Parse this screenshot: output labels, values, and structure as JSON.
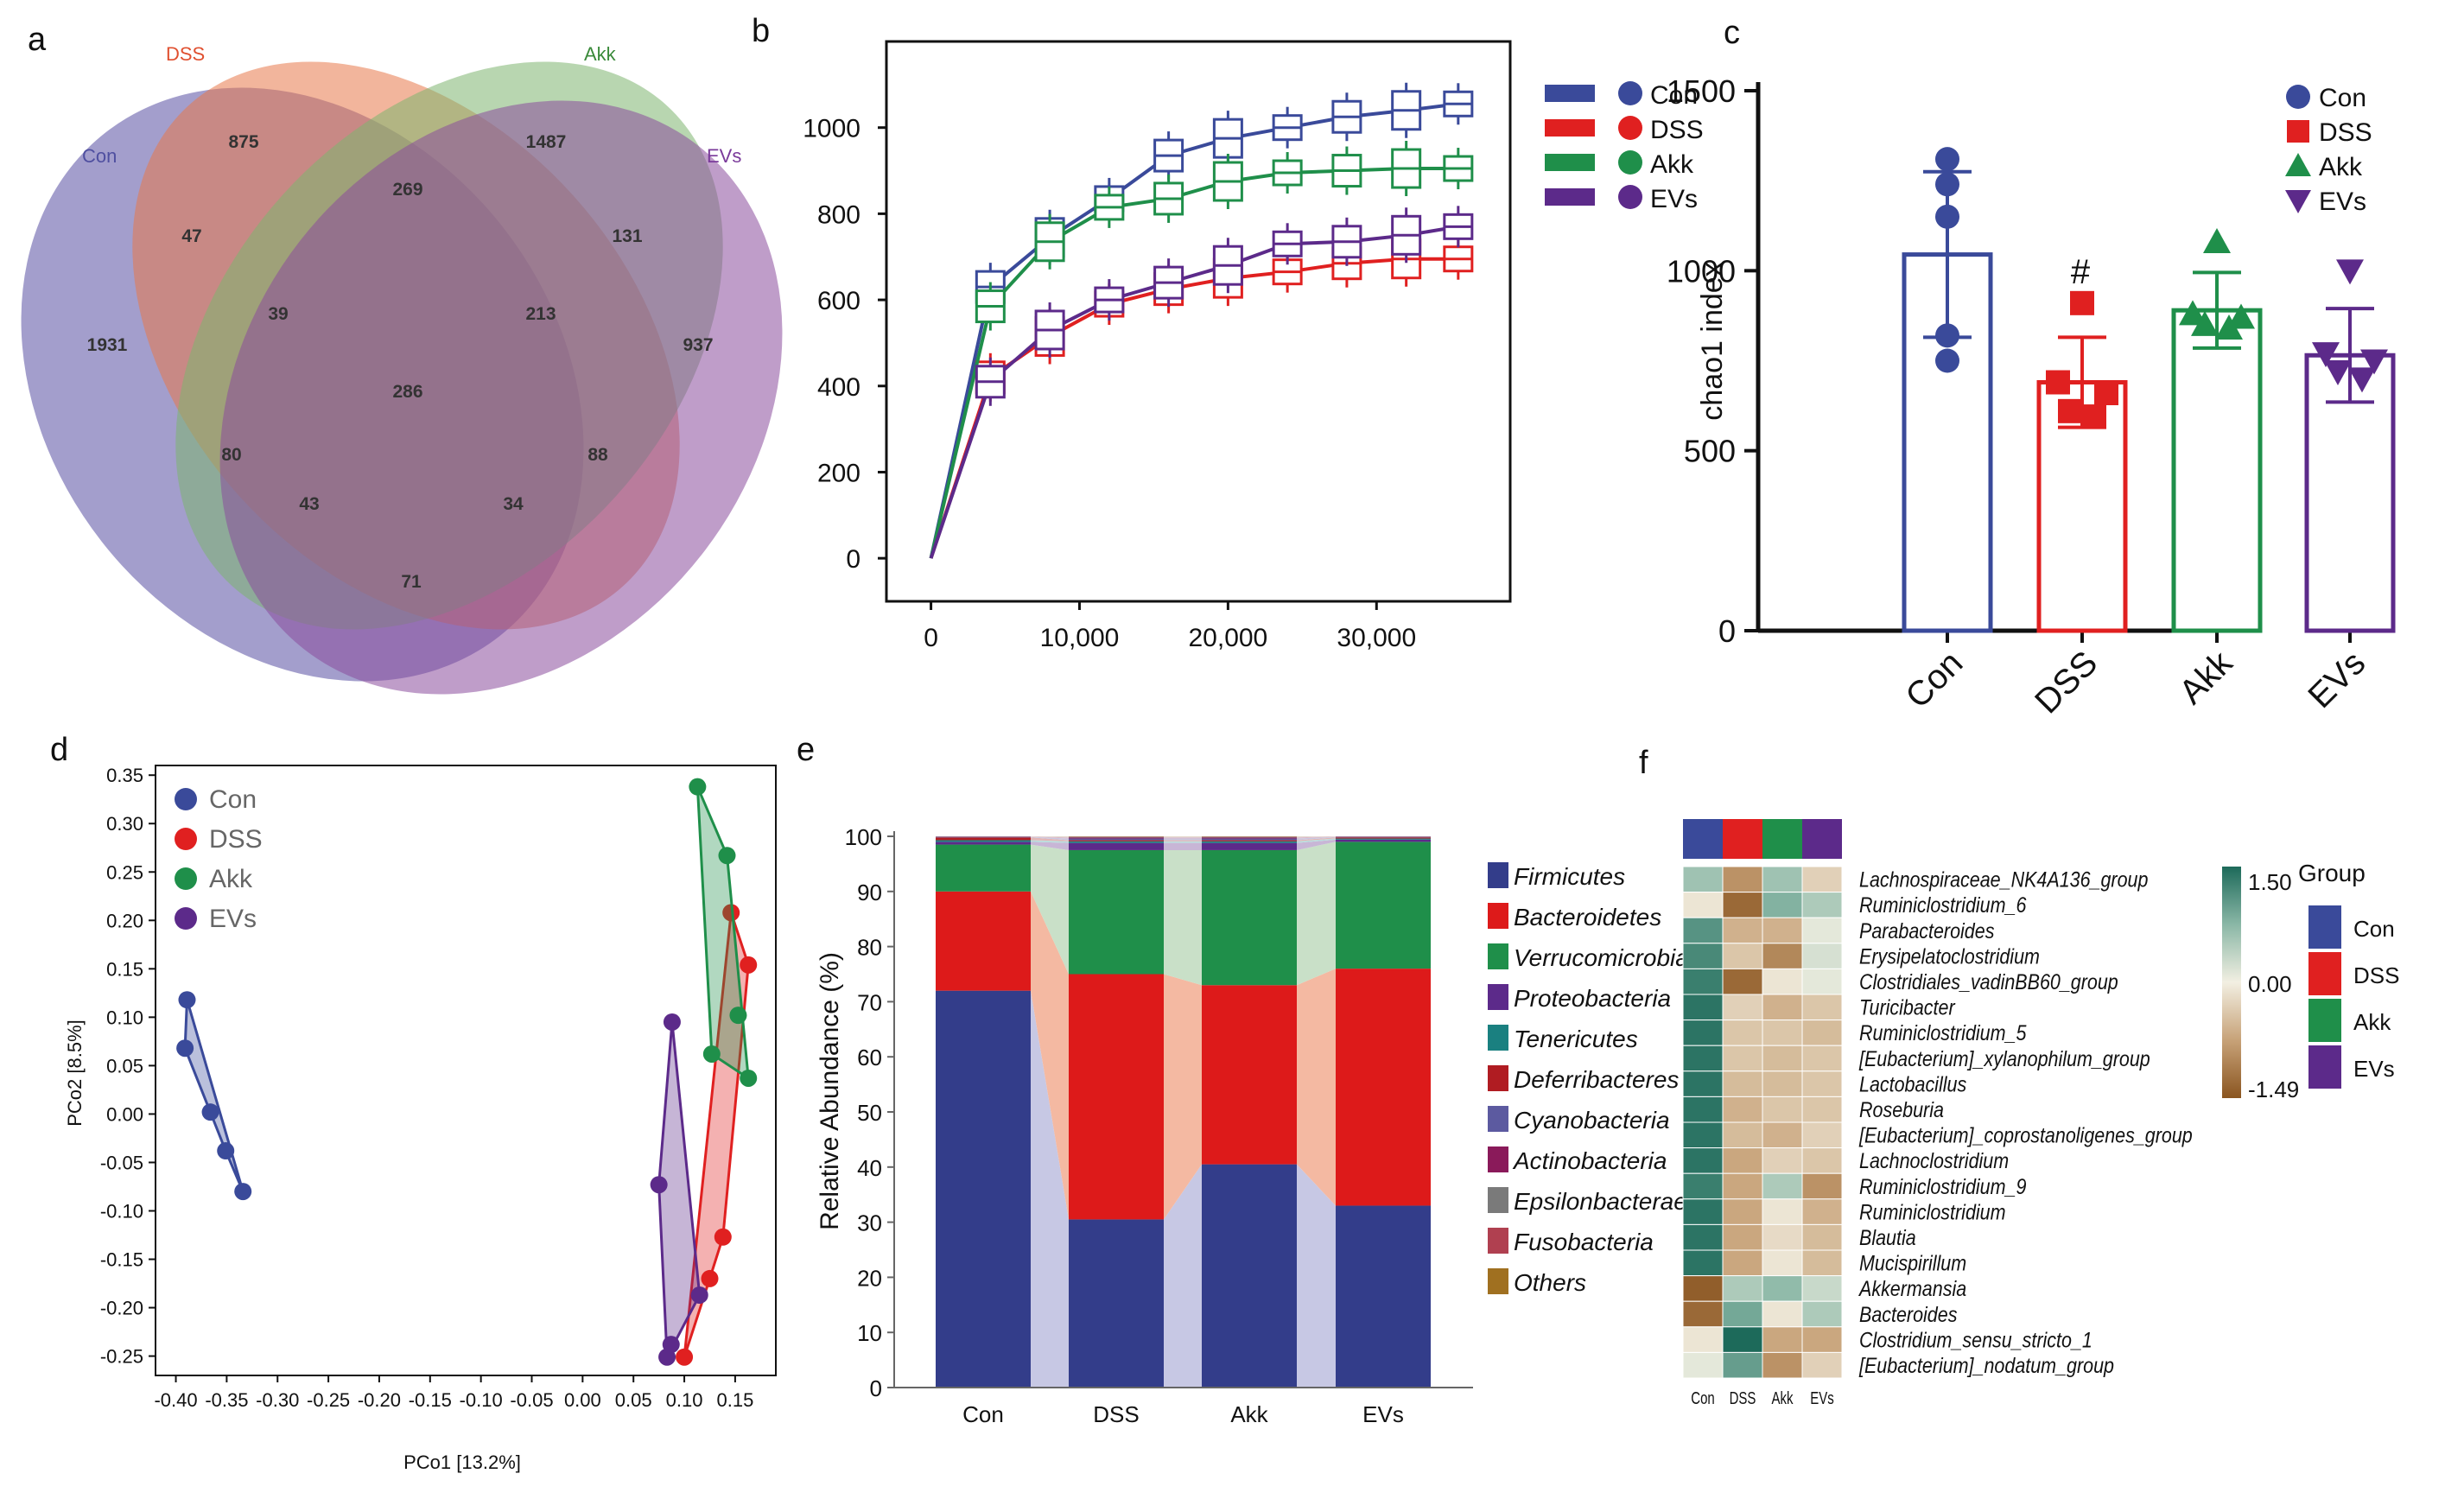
{
  "panels": [
    "a",
    "b",
    "c",
    "d",
    "e",
    "f"
  ],
  "colors": {
    "Con": "#3a4a9a",
    "DSS": "#e02020",
    "Akk": "#1f8f4a",
    "EVs": "#5c2a8a",
    "venn_Con": "#7b76b6",
    "venn_DSS": "#e8805a",
    "venn_Akk": "#86b77a",
    "venn_EVs": "#8e5a9e"
  },
  "chart_data": [
    {
      "panel": "a",
      "type": "venn",
      "sets": [
        {
          "name": "Con",
          "color": "#4f4fa0"
        },
        {
          "name": "DSS",
          "color": "#e05030"
        },
        {
          "name": "Akk",
          "color": "#3a8a3a"
        },
        {
          "name": "EVs",
          "color": "#7a3a9a"
        }
      ],
      "regions": [
        "1931",
        "875",
        "1487",
        "937",
        "47",
        "269",
        "131",
        "39",
        "213",
        "286",
        "80",
        "88",
        "43",
        "34",
        "71"
      ]
    },
    {
      "panel": "b",
      "type": "line",
      "title": "",
      "xlabel": "",
      "ylabel": "",
      "x": [
        0,
        4000,
        8000,
        12000,
        16000,
        20000,
        24000,
        28000,
        32000,
        35500
      ],
      "xticks": [
        "0",
        "10,000",
        "20,000",
        "30,000"
      ],
      "yticks": [
        "0",
        "200",
        "400",
        "600",
        "800",
        "1000"
      ],
      "xlim": [
        -3000,
        39000
      ],
      "ylim": [
        -100,
        1200
      ],
      "series": [
        {
          "name": "Con",
          "values": [
            0,
            630,
            745,
            835,
            935,
            975,
            1000,
            1025,
            1040,
            1055
          ]
        },
        {
          "name": "DSS",
          "values": [
            0,
            420,
            515,
            590,
            625,
            650,
            665,
            685,
            695,
            695
          ]
        },
        {
          "name": "Akk",
          "values": [
            0,
            585,
            735,
            815,
            835,
            875,
            895,
            900,
            905,
            905
          ]
        },
        {
          "name": "EVs",
          "values": [
            0,
            410,
            530,
            600,
            640,
            680,
            730,
            735,
            750,
            770
          ]
        }
      ]
    },
    {
      "panel": "c",
      "type": "bar",
      "ylabel": "chao1 index",
      "yticks": [
        "0",
        "500",
        "1000",
        "1500"
      ],
      "ylim": [
        0,
        1500
      ],
      "categories": [
        "Con",
        "DSS",
        "Akk",
        "EVs"
      ],
      "values": [
        1045,
        690,
        890,
        765
      ],
      "errors": [
        230,
        125,
        105,
        130
      ],
      "annotation": "#",
      "points": [
        [
          1310,
          1240,
          1150,
          820,
          750
        ],
        [
          910,
          690,
          660,
          610,
          595
        ],
        [
          1080,
          880,
          870,
          850,
          840
        ],
        [
          1000,
          770,
          750,
          720,
          700
        ]
      ]
    },
    {
      "panel": "d",
      "type": "scatter",
      "xlabel": "PCo1 [13.2%]",
      "ylabel": "PCo2 [8.5%]",
      "xlim": [
        -0.42,
        0.19
      ],
      "ylim": [
        -0.27,
        0.36
      ],
      "xticks": [
        "-0.40",
        "-0.35",
        "-0.30",
        "-0.25",
        "-0.20",
        "-0.15",
        "-0.10",
        "-0.05",
        "0.00",
        "0.05",
        "0.10",
        "0.15"
      ],
      "yticks": [
        "-0.25",
        "-0.20",
        "-0.15",
        "-0.10",
        "-0.05",
        "0.00",
        "0.05",
        "0.10",
        "0.15",
        "0.20",
        "0.25",
        "0.30",
        "0.35"
      ],
      "series": [
        {
          "name": "Con",
          "x": [
            -0.389,
            -0.391,
            -0.366,
            -0.351,
            -0.334
          ],
          "y": [
            0.118,
            0.068,
            0.002,
            -0.038,
            -0.08
          ]
        },
        {
          "name": "DSS",
          "x": [
            0.1,
            0.125,
            0.138,
            0.146,
            0.163
          ],
          "y": [
            -0.251,
            -0.17,
            -0.127,
            0.208,
            0.154
          ]
        },
        {
          "name": "Akk",
          "x": [
            0.113,
            0.127,
            0.142,
            0.153,
            0.163
          ],
          "y": [
            0.338,
            0.062,
            0.267,
            0.102,
            0.037
          ]
        },
        {
          "name": "EVs",
          "x": [
            0.075,
            0.083,
            0.087,
            0.088,
            0.115
          ],
          "y": [
            -0.073,
            -0.251,
            -0.238,
            0.095,
            -0.187
          ]
        }
      ]
    },
    {
      "panel": "e",
      "type": "stacked-bar",
      "ylabel": "Relative Abundance (%)",
      "yticks": [
        "0",
        "10",
        "20",
        "30",
        "40",
        "50",
        "60",
        "70",
        "80",
        "90",
        "100"
      ],
      "categories": [
        "Con",
        "DSS",
        "Akk",
        "EVs"
      ],
      "series": [
        {
          "name": "Firmicutes",
          "color": "#333d8a",
          "values": [
            72,
            30.5,
            40.5,
            33
          ]
        },
        {
          "name": "Bacteroidetes",
          "color": "#dd1a1a",
          "values": [
            18,
            44.5,
            32.5,
            43
          ]
        },
        {
          "name": "Verrucomicrobia",
          "color": "#1f8f4a",
          "values": [
            8.5,
            22.5,
            24.5,
            23
          ]
        },
        {
          "name": "Proteobacteria",
          "color": "#5c2a8a",
          "values": [
            0.5,
            1.3,
            1.3,
            0.4
          ]
        },
        {
          "name": "Tenericutes",
          "color": "#1a8080",
          "values": [
            0.3,
            0.3,
            0.3,
            0.2
          ]
        },
        {
          "name": "Deferribacteres",
          "color": "#b01c22",
          "values": [
            0.5,
            0.2,
            0.2,
            0.2
          ]
        },
        {
          "name": "Cyanobacteria",
          "color": "#5c5aa0",
          "values": [
            0.1,
            0.3,
            0.3,
            0.1
          ]
        },
        {
          "name": "Actinobacteria",
          "color": "#8a1a5a",
          "values": [
            0.05,
            0.2,
            0.2,
            0.05
          ]
        },
        {
          "name": "Epsilonbacteraeota",
          "color": "#7a7a7a",
          "values": [
            0.02,
            0.1,
            0.1,
            0.02
          ]
        },
        {
          "name": "Fusobacteria",
          "color": "#b04050",
          "values": [
            0.02,
            0.05,
            0.05,
            0.02
          ]
        },
        {
          "name": "Others",
          "color": "#a07020",
          "values": [
            0.01,
            0.05,
            0.05,
            0.01
          ]
        }
      ]
    },
    {
      "panel": "f",
      "type": "heatmap",
      "groups": [
        "Con",
        "DSS",
        "Akk",
        "EVs"
      ],
      "group_legend_title": "Group",
      "scale_labels": [
        "1.50",
        "0.00",
        "-1.49"
      ],
      "rows": [
        "Lachnospiraceae_NK4A136_group",
        "Ruminiclostridium_6",
        "Parabacteroides",
        "Erysipelatoclostridium",
        "Clostridiales_vadinBB60_group",
        "Turicibacter",
        "Ruminiclostridium_5",
        "[Eubacterium]_xylanophilum_group",
        "Lactobacillus",
        "Roseburia",
        "[Eubacterium]_coprostanoligenes_group",
        "Lachnoclostridium",
        "Ruminiclostridium_9",
        "Ruminiclostridium",
        "Blautia",
        "Mucispirillum",
        "Akkermansia",
        "Bacteroides",
        "Clostridium_sensu_stricto_1",
        "[Eubacterium]_nodatum_group"
      ],
      "values": [
        [
          0.6,
          -0.9,
          0.6,
          -0.3
        ],
        [
          -0.1,
          -1.3,
          0.8,
          0.5
        ],
        [
          1.1,
          -0.6,
          -0.6,
          0.1
        ],
        [
          1.2,
          -0.4,
          -1.0,
          0.2
        ],
        [
          1.3,
          -1.3,
          -0.1,
          0.1
        ],
        [
          1.4,
          -0.3,
          -0.6,
          -0.4
        ],
        [
          1.4,
          -0.4,
          -0.4,
          -0.5
        ],
        [
          1.4,
          -0.4,
          -0.5,
          -0.4
        ],
        [
          1.4,
          -0.5,
          -0.5,
          -0.4
        ],
        [
          1.4,
          -0.6,
          -0.4,
          -0.4
        ],
        [
          1.4,
          -0.5,
          -0.6,
          -0.3
        ],
        [
          1.4,
          -0.7,
          -0.3,
          -0.4
        ],
        [
          1.3,
          -0.7,
          0.5,
          -0.9
        ],
        [
          1.4,
          -0.7,
          -0.1,
          -0.6
        ],
        [
          1.4,
          -0.7,
          -0.2,
          -0.5
        ],
        [
          1.4,
          -0.7,
          -0.1,
          -0.5
        ],
        [
          -1.4,
          0.5,
          0.7,
          0.3
        ],
        [
          -1.3,
          0.9,
          -0.1,
          0.5
        ],
        [
          -0.1,
          1.5,
          -0.7,
          -0.7
        ],
        [
          0.1,
          1.0,
          -0.9,
          -0.3
        ]
      ]
    }
  ]
}
